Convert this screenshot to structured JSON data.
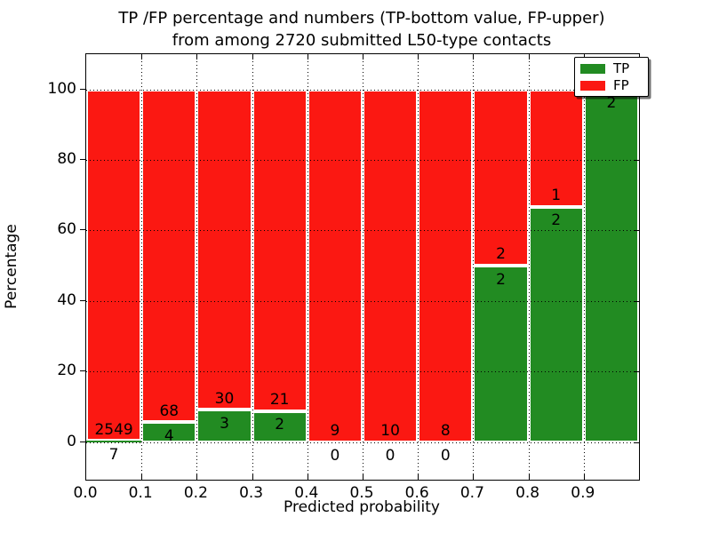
{
  "title": {
    "line1": "TP /FP percentage and numbers (TP-bottom value, FP-upper)",
    "line2": "from among 2720 submitted L50-type contacts"
  },
  "axes": {
    "xlabel": "Predicted probability",
    "ylabel": "Percentage",
    "xtick_labels": [
      "0.0",
      "0.1",
      "0.2",
      "0.3",
      "0.4",
      "0.5",
      "0.6",
      "0.7",
      "0.8",
      "0.9"
    ],
    "ytick_labels": [
      "0",
      "20",
      "40",
      "60",
      "80",
      "100"
    ],
    "ytick_values": [
      0,
      20,
      40,
      60,
      80,
      100
    ],
    "xlim": [
      0.0,
      1.0
    ],
    "ylim": [
      -10.7,
      110
    ],
    "grid_style": "dotted"
  },
  "legend": {
    "position": "upper-right",
    "items": [
      {
        "label": "TP",
        "color": "#228b22"
      },
      {
        "label": "FP",
        "color": "#fb1812"
      }
    ]
  },
  "chart_data": {
    "type": "bar",
    "stacked": true,
    "normalized": "percent_of_bin_total",
    "title": "TP /FP percentage and numbers (TP-bottom value, FP-upper) from among 2720 submitted L50-type contacts",
    "xlabel": "Predicted probability",
    "ylabel": "Percentage",
    "total_submitted_contacts": 2720,
    "bin_edges": [
      0.0,
      0.1,
      0.2,
      0.3,
      0.4,
      0.5,
      0.6,
      0.7,
      0.8,
      0.9,
      1.0
    ],
    "series": [
      {
        "name": "TP",
        "color": "#228b22",
        "counts": [
          7,
          4,
          3,
          2,
          0,
          0,
          0,
          2,
          2,
          2
        ]
      },
      {
        "name": "FP",
        "color": "#fb1812",
        "counts": [
          2549,
          68,
          30,
          21,
          9,
          10,
          8,
          2,
          1,
          0
        ]
      }
    ],
    "tp_percent": [
      0.27,
      5.56,
      9.09,
      8.7,
      0,
      0,
      0,
      50,
      66.67,
      100
    ],
    "fp_percent": [
      99.73,
      94.44,
      90.91,
      91.3,
      100,
      100,
      100,
      50,
      33.33,
      0
    ],
    "label_rule": "TP count printed just below segment boundary, FP count just above; zero/tiny TP counts appear below the 0 axis line"
  },
  "colors": {
    "tp": "#228b22",
    "fp": "#fb1812",
    "grid": "#000000",
    "background": "#ffffff",
    "text": "#000000"
  }
}
